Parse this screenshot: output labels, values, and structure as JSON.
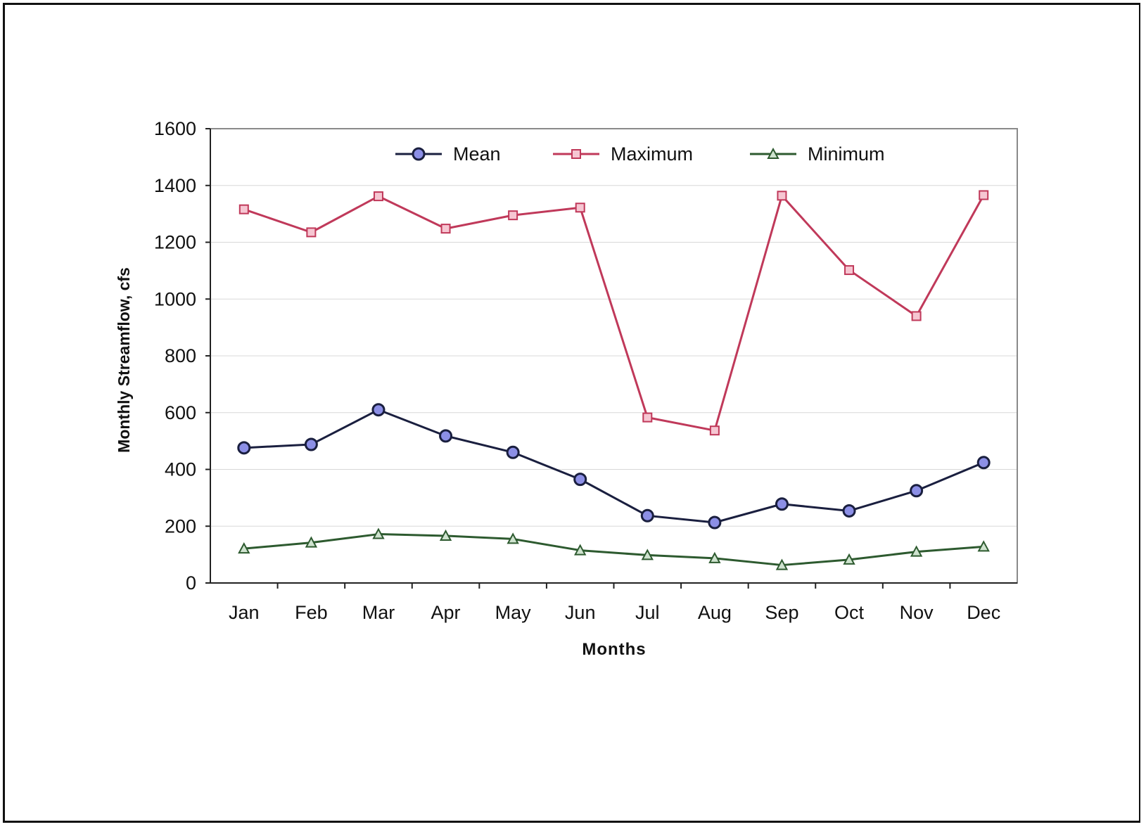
{
  "chart_data": {
    "type": "line",
    "categories": [
      "Jan",
      "Feb",
      "Mar",
      "Apr",
      "May",
      "Jun",
      "Jul",
      "Aug",
      "Sep",
      "Oct",
      "Nov",
      "Dec"
    ],
    "series": [
      {
        "name": "Mean",
        "values": [
          476,
          488,
          610,
          518,
          460,
          365,
          237,
          213,
          278,
          254,
          325,
          424
        ],
        "color": "#1a1f3f",
        "marker": "circle",
        "marker_fill": "#8c8fe6"
      },
      {
        "name": "Maximum",
        "values": [
          1316,
          1235,
          1362,
          1248,
          1295,
          1322,
          583,
          537,
          1364,
          1102,
          940,
          1366
        ],
        "color": "#c0395a",
        "marker": "square",
        "marker_fill": "#f6c6d2"
      },
      {
        "name": "Minimum",
        "values": [
          121,
          142,
          172,
          166,
          155,
          115,
          98,
          87,
          63,
          82,
          110,
          128
        ],
        "color": "#2d5a2f",
        "marker": "triangle",
        "marker_fill": "#cfe3cf"
      }
    ],
    "title": "",
    "xlabel": "Months",
    "ylabel": "Monthly Streamflow, cfs",
    "ylim": [
      0,
      1600
    ],
    "yticks": [
      0,
      200,
      400,
      600,
      800,
      1000,
      1200,
      1400,
      1600
    ],
    "grid": true,
    "legend_position": "top-center"
  }
}
